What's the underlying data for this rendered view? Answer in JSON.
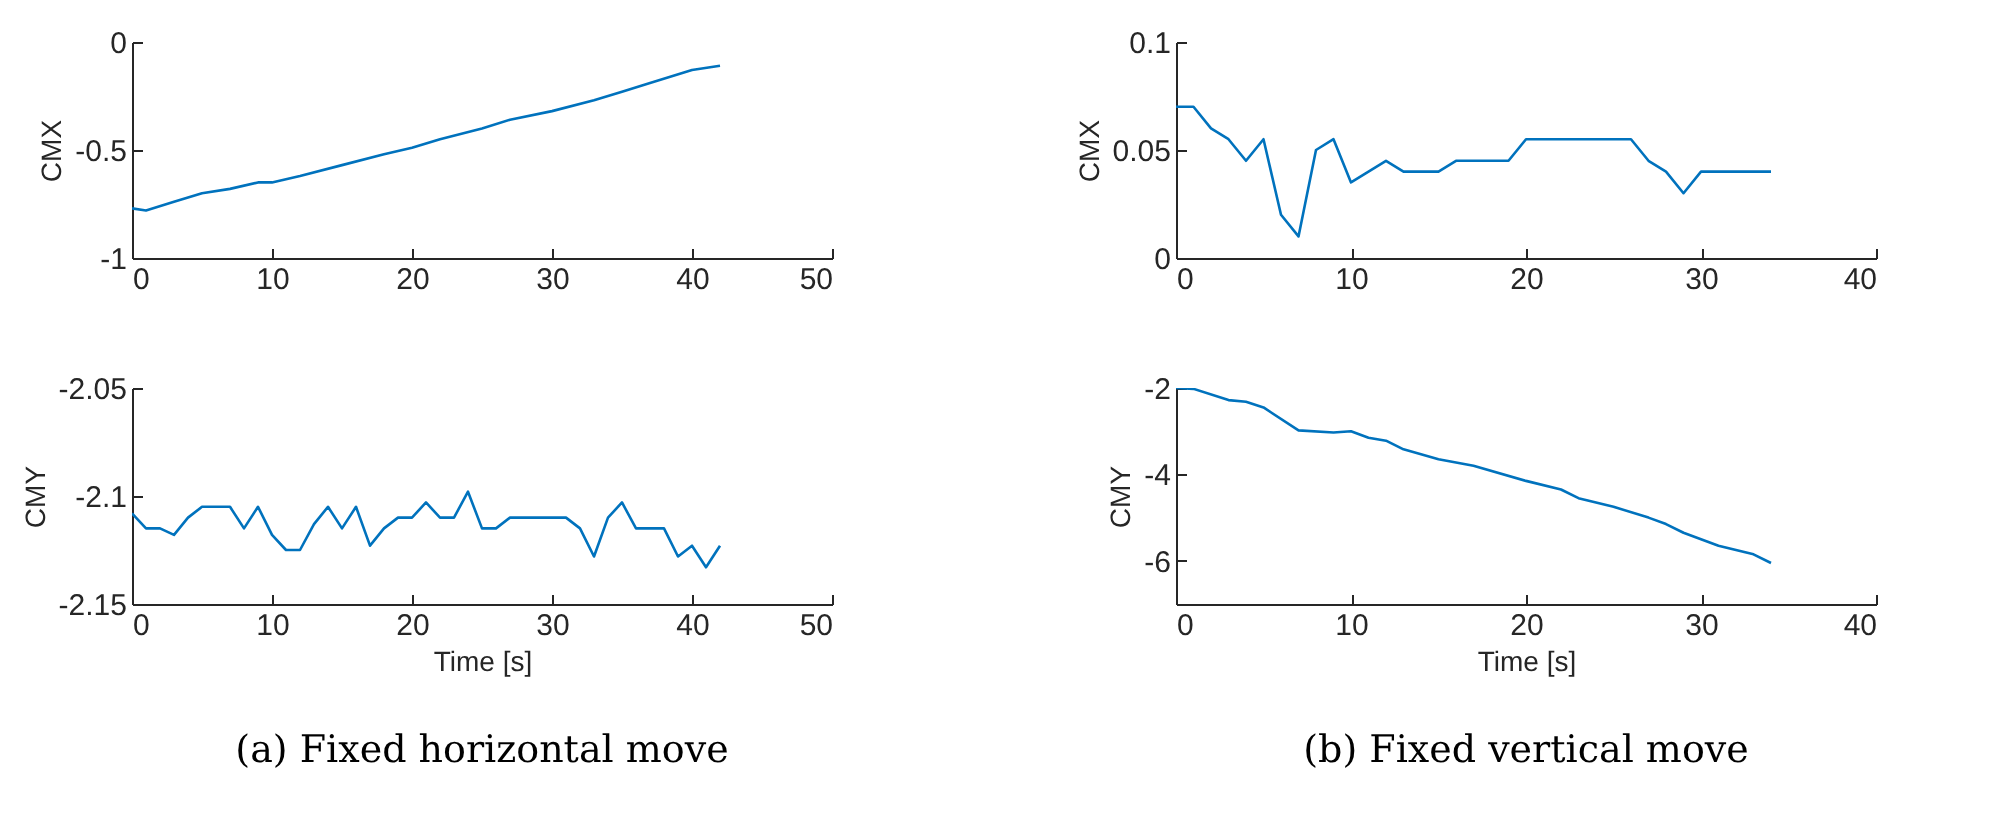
{
  "chart_data": [
    {
      "type": "line",
      "ylabel": "CMX",
      "x": [
        0,
        1,
        3,
        5,
        7,
        9,
        10,
        12,
        15,
        18,
        20,
        22,
        25,
        27,
        30,
        33,
        35,
        37,
        40,
        42
      ],
      "series": [
        {
          "color": "#0072bd",
          "values": [
            -0.77,
            -0.78,
            -0.74,
            -0.7,
            -0.68,
            -0.65,
            -0.65,
            -0.62,
            -0.57,
            -0.52,
            -0.49,
            -0.45,
            -0.4,
            -0.36,
            -0.32,
            -0.27,
            -0.23,
            -0.19,
            -0.13,
            -0.11
          ]
        }
      ],
      "xlim": [
        0,
        50
      ],
      "xticks": [
        0,
        10,
        20,
        30,
        40,
        50
      ],
      "ylim": [
        -1,
        0
      ],
      "yticks": [
        -1,
        -0.5,
        0
      ]
    },
    {
      "type": "line",
      "xlabel": "Time [s]",
      "ylabel": "CMY",
      "x": [
        0,
        1,
        2,
        3,
        4,
        5,
        6,
        7,
        8,
        9,
        10,
        11,
        12,
        13,
        14,
        15,
        16,
        17,
        18,
        19,
        20,
        21,
        22,
        23,
        24,
        25,
        26,
        27,
        28,
        29,
        30,
        31,
        32,
        33,
        34,
        35,
        36,
        37,
        38,
        39,
        40,
        41,
        42
      ],
      "series": [
        {
          "color": "#0072bd",
          "values": [
            -2.108,
            -2.115,
            -2.115,
            -2.118,
            -2.11,
            -2.105,
            -2.105,
            -2.105,
            -2.115,
            -2.105,
            -2.118,
            -2.125,
            -2.125,
            -2.113,
            -2.105,
            -2.115,
            -2.105,
            -2.123,
            -2.115,
            -2.11,
            -2.11,
            -2.103,
            -2.11,
            -2.11,
            -2.098,
            -2.115,
            -2.115,
            -2.11,
            -2.11,
            -2.11,
            -2.11,
            -2.11,
            -2.115,
            -2.128,
            -2.11,
            -2.103,
            -2.115,
            -2.115,
            -2.115,
            -2.128,
            -2.123,
            -2.133,
            -2.123
          ]
        }
      ],
      "xlim": [
        0,
        50
      ],
      "xticks": [
        0,
        10,
        20,
        30,
        40,
        50
      ],
      "ylim": [
        -2.15,
        -2.05
      ],
      "yticks": [
        -2.15,
        -2.1,
        -2.05
      ],
      "annotations": [
        "(a) Fixed horizontal move"
      ]
    },
    {
      "type": "line",
      "ylabel": "CMX",
      "x": [
        0,
        1,
        2,
        3,
        4,
        5,
        6,
        7,
        8,
        9,
        10,
        11,
        12,
        13,
        14,
        15,
        16,
        17,
        18,
        19,
        20,
        21,
        22,
        23,
        24,
        25,
        26,
        27,
        28,
        29,
        30,
        31,
        32,
        33,
        34
      ],
      "series": [
        {
          "color": "#0072bd",
          "values": [
            0.07,
            0.07,
            0.06,
            0.055,
            0.045,
            0.055,
            0.02,
            0.01,
            0.05,
            0.055,
            0.035,
            0.04,
            0.045,
            0.04,
            0.04,
            0.04,
            0.045,
            0.045,
            0.045,
            0.045,
            0.055,
            0.055,
            0.055,
            0.055,
            0.055,
            0.055,
            0.055,
            0.045,
            0.04,
            0.03,
            0.04,
            0.04,
            0.04,
            0.04,
            0.04
          ]
        }
      ],
      "xlim": [
        0,
        40
      ],
      "xticks": [
        0,
        10,
        20,
        30,
        40
      ],
      "ylim": [
        0,
        0.1
      ],
      "yticks": [
        0,
        0.05,
        0.1
      ]
    },
    {
      "type": "line",
      "xlabel": "Time [s]",
      "ylabel": "CMY",
      "x": [
        0,
        1,
        3,
        4,
        5,
        7,
        9,
        10,
        11,
        12,
        13,
        15,
        17,
        20,
        22,
        23,
        25,
        27,
        28,
        29,
        30,
        31,
        33,
        34
      ],
      "series": [
        {
          "color": "#0072bd",
          "values": [
            -2,
            -2.02,
            -2.28,
            -2.32,
            -2.45,
            -2.98,
            -3.03,
            -3,
            -3.15,
            -3.22,
            -3.42,
            -3.65,
            -3.8,
            -4.15,
            -4.35,
            -4.55,
            -4.75,
            -5,
            -5.15,
            -5.35,
            -5.5,
            -5.65,
            -5.85,
            -6.05
          ]
        }
      ],
      "xlim": [
        0,
        40
      ],
      "xticks": [
        0,
        10,
        20,
        30,
        40
      ],
      "ylim": [
        -7,
        -2
      ],
      "yticks": [
        -6,
        -4,
        -2
      ],
      "annotations": [
        "(b) Fixed vertical move"
      ]
    }
  ]
}
